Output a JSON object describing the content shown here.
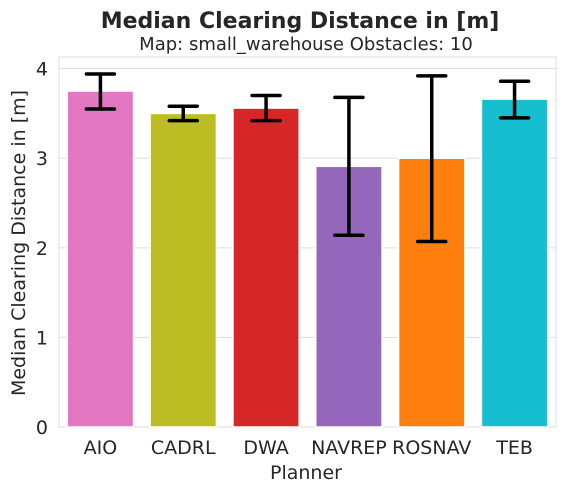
{
  "chart_data": {
    "type": "bar",
    "title": "Median Clearing Distance in [m]",
    "subtitle": "Map: small_warehouse Obstacles: 10",
    "xlabel": "Planner",
    "ylabel": "Median Clearing Distance in [m]",
    "categories": [
      "AIO",
      "CADRL",
      "DWA",
      "NAVREP",
      "ROSNAV",
      "TEB"
    ],
    "values": [
      3.75,
      3.5,
      3.56,
      2.91,
      3.0,
      3.66
    ],
    "error_low": [
      3.55,
      3.42,
      3.42,
      2.14,
      2.07,
      3.45
    ],
    "error_high": [
      3.94,
      3.58,
      3.7,
      3.68,
      3.92,
      3.86
    ],
    "colors": [
      "#e377c2",
      "#bcbd22",
      "#d62728",
      "#9467bd",
      "#ff7f0e",
      "#17becf"
    ],
    "yticks": [
      0,
      1,
      2,
      3,
      4
    ],
    "ylim": [
      0,
      4.13
    ],
    "grid": true
  }
}
